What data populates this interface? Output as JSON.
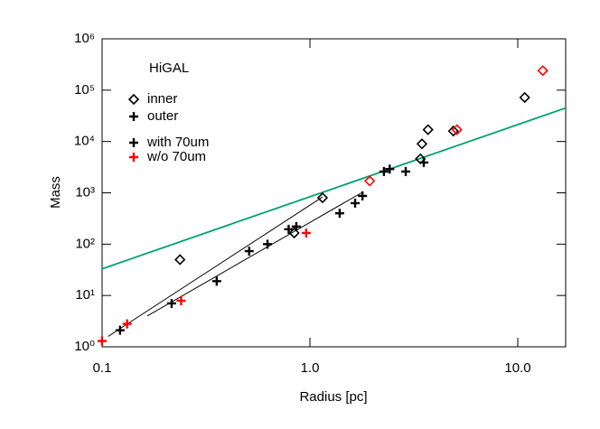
{
  "chart_data": {
    "type": "scatter",
    "xlabel": "Radius [pc]",
    "ylabel": "Mass",
    "xscale": "log",
    "yscale": "log",
    "xlim": [
      0.1,
      17
    ],
    "ylim": [
      1,
      1000000
    ],
    "xticks": [
      0.1,
      {
        "value": 1,
        "label": "1.0"
      },
      {
        "value": 10,
        "label": "10.0"
      }
    ],
    "yticks": [
      {
        "value": 1,
        "label": "10⁰"
      },
      {
        "value": 10,
        "label": "10¹"
      },
      {
        "value": 100,
        "label": "10²"
      },
      {
        "value": 1000,
        "label": "10³"
      },
      {
        "value": 10000,
        "label": "10⁴"
      },
      {
        "value": 100000,
        "label": "10⁵"
      },
      {
        "value": 1000000,
        "label": "10⁶"
      }
    ],
    "legend": {
      "title": "HiGAL",
      "entries": [
        {
          "label": "inner",
          "marker": "diamond",
          "color": "#000000"
        },
        {
          "label": "outer",
          "marker": "plus",
          "color": "#000000"
        },
        {
          "label": "with 70um",
          "marker": "plus",
          "color": "#000000"
        },
        {
          "label": "w/o 70um",
          "marker": "plus",
          "color": "#ff0000"
        }
      ]
    },
    "series": [
      {
        "marker": "diamond",
        "color": "#000000",
        "x": [
          0.237,
          1.15,
          0.84,
          3.4,
          3.46,
          3.7,
          4.9,
          10.8
        ],
        "values": [
          50,
          800,
          165,
          4600,
          9000,
          17000,
          16000,
          72000
        ]
      },
      {
        "marker": "diamond",
        "color": "#ff0000",
        "x": [
          1.94,
          5.1,
          13.2
        ],
        "values": [
          1700,
          17000,
          240000
        ]
      },
      {
        "marker": "plus",
        "color": "#000000",
        "x": [
          0.122,
          0.216,
          0.356,
          0.51,
          0.625,
          0.79,
          0.86,
          1.39,
          1.65,
          1.79,
          2.27,
          2.42,
          2.89,
          3.53
        ],
        "values": [
          2.1,
          7,
          19,
          73,
          100,
          195,
          220,
          400,
          630,
          870,
          2600,
          2900,
          2600,
          3900
        ]
      },
      {
        "marker": "plus",
        "color": "#ff0000",
        "x": [
          0.1,
          0.132,
          0.24,
          0.96
        ],
        "values": [
          1.3,
          2.8,
          7.9,
          165
        ]
      }
    ],
    "lines": [
      {
        "color": "#00a070",
        "x": [
          0.1,
          17
        ],
        "values": [
          33,
          45000
        ]
      },
      {
        "color": "#000000",
        "x": [
          0.107,
          1.15
        ],
        "values": [
          1.6,
          830
        ]
      },
      {
        "color": "#000000",
        "x": [
          0.165,
          1.77
        ],
        "values": [
          4,
          1000
        ]
      }
    ]
  }
}
